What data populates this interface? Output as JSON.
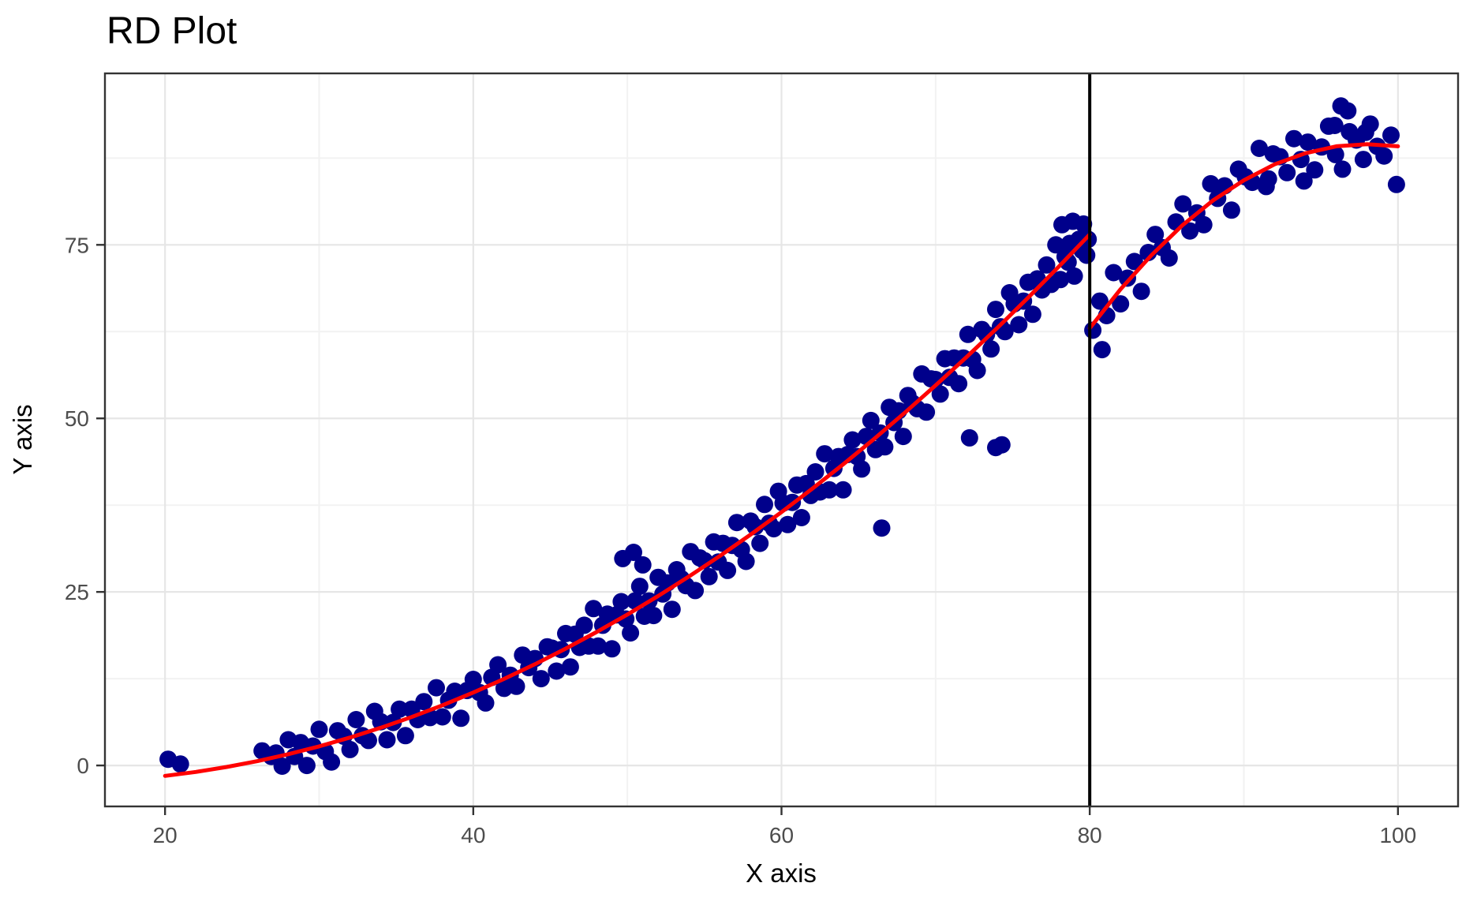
{
  "page": {
    "title": "RD Plot"
  },
  "chart_data": {
    "type": "scatter",
    "title": "RD Plot",
    "xlabel": "X axis",
    "ylabel": "Y axis",
    "xlim": [
      16.1,
      103.9
    ],
    "ylim": [
      -5.9,
      99.7
    ],
    "x_ticks": [
      20,
      40,
      60,
      80,
      100
    ],
    "x_tick_labels": [
      "20",
      "40",
      "60",
      "80",
      "100"
    ],
    "y_ticks": [
      0,
      25,
      50,
      75
    ],
    "y_tick_labels": [
      "0",
      "25",
      "50",
      "75"
    ],
    "x_minor_gridlines": [
      30,
      50,
      70,
      90
    ],
    "y_minor_gridlines": [
      12.5,
      37.5,
      62.5,
      87.5
    ],
    "grid": "on",
    "legend": "none",
    "cutoff_x": 80,
    "discontinuity": {
      "left_limit": 76.5,
      "right_limit": 63.0
    },
    "colors": {
      "points": "#00008B",
      "fit_line": "#FF0000",
      "cutoff_line": "#000000",
      "grid_major": "#E6E6E6",
      "grid_minor": "#F2F2F2",
      "panel_border": "#333333",
      "tick_text": "#4D4D4D",
      "text": "#000000"
    },
    "series": [
      {
        "name": "observations",
        "type": "scatter",
        "points": [
          [
            20.2,
            0.9
          ],
          [
            21.0,
            0.2
          ],
          [
            26.3,
            2.1
          ],
          [
            26.9,
            1.3
          ],
          [
            27.2,
            1.8
          ],
          [
            27.6,
            -0.1
          ],
          [
            28.0,
            3.7
          ],
          [
            28.4,
            1.3
          ],
          [
            28.8,
            3.3
          ],
          [
            29.2,
            0.0
          ],
          [
            29.6,
            2.8
          ],
          [
            30.0,
            5.2
          ],
          [
            30.4,
            2.0
          ],
          [
            30.8,
            0.5
          ],
          [
            31.2,
            5.0
          ],
          [
            31.6,
            4.2
          ],
          [
            32.0,
            2.3
          ],
          [
            32.4,
            6.6
          ],
          [
            32.8,
            4.3
          ],
          [
            33.2,
            3.6
          ],
          [
            33.6,
            7.8
          ],
          [
            34.0,
            6.3
          ],
          [
            34.4,
            3.7
          ],
          [
            34.8,
            6.2
          ],
          [
            35.2,
            8.1
          ],
          [
            35.6,
            4.3
          ],
          [
            36.0,
            8.1
          ],
          [
            36.4,
            6.6
          ],
          [
            36.8,
            9.2
          ],
          [
            37.2,
            6.9
          ],
          [
            37.6,
            11.2
          ],
          [
            38.0,
            7.0
          ],
          [
            38.4,
            9.4
          ],
          [
            38.8,
            10.7
          ],
          [
            39.2,
            6.8
          ],
          [
            39.6,
            10.8
          ],
          [
            40.0,
            12.4
          ],
          [
            40.4,
            10.5
          ],
          [
            40.8,
            9.0
          ],
          [
            41.2,
            12.7
          ],
          [
            41.6,
            14.5
          ],
          [
            42.0,
            11.1
          ],
          [
            42.4,
            13.0
          ],
          [
            42.8,
            11.4
          ],
          [
            43.2,
            15.9
          ],
          [
            43.6,
            14.1
          ],
          [
            44.0,
            15.4
          ],
          [
            44.4,
            12.5
          ],
          [
            44.8,
            17.1
          ],
          [
            45.1,
            16.9
          ],
          [
            45.4,
            13.6
          ],
          [
            45.7,
            16.7
          ],
          [
            46.0,
            19.0
          ],
          [
            46.3,
            14.2
          ],
          [
            46.6,
            18.9
          ],
          [
            46.9,
            17.0
          ],
          [
            47.2,
            20.2
          ],
          [
            47.5,
            17.2
          ],
          [
            47.8,
            22.6
          ],
          [
            48.1,
            17.2
          ],
          [
            48.4,
            20.2
          ],
          [
            48.7,
            21.8
          ],
          [
            49.0,
            16.8
          ],
          [
            49.3,
            21.7
          ],
          [
            49.6,
            23.6
          ],
          [
            49.9,
            21.1
          ],
          [
            50.2,
            19.1
          ],
          [
            50.5,
            23.7
          ],
          [
            50.8,
            25.8
          ],
          [
            51.1,
            21.5
          ],
          [
            51.4,
            23.7
          ],
          [
            51.7,
            21.6
          ],
          [
            52.0,
            27.1
          ],
          [
            52.3,
            24.7
          ],
          [
            52.6,
            26.3
          ],
          [
            52.9,
            22.5
          ],
          [
            53.2,
            28.2
          ],
          [
            53.5,
            26.9
          ],
          [
            53.8,
            25.9
          ],
          [
            54.1,
            30.8
          ],
          [
            54.4,
            25.2
          ],
          [
            54.7,
            29.9
          ],
          [
            55.0,
            29.5
          ],
          [
            55.3,
            27.2
          ],
          [
            55.6,
            32.2
          ],
          [
            55.9,
            29.3
          ],
          [
            56.2,
            32.0
          ],
          [
            56.5,
            28.1
          ],
          [
            56.8,
            31.7
          ],
          [
            57.1,
            35.0
          ],
          [
            57.4,
            31.1
          ],
          [
            57.7,
            29.4
          ],
          [
            58.0,
            35.2
          ],
          [
            58.3,
            34.4
          ],
          [
            58.6,
            32.0
          ],
          [
            58.9,
            37.6
          ],
          [
            59.2,
            34.9
          ],
          [
            59.5,
            34.1
          ],
          [
            59.8,
            39.5
          ],
          [
            60.1,
            37.8
          ],
          [
            60.4,
            34.7
          ],
          [
            60.7,
            37.9
          ],
          [
            61.0,
            40.4
          ],
          [
            61.3,
            35.7
          ],
          [
            61.6,
            40.6
          ],
          [
            61.9,
            38.9
          ],
          [
            62.2,
            42.3
          ],
          [
            62.5,
            39.4
          ],
          [
            62.8,
            44.9
          ],
          [
            63.1,
            39.7
          ],
          [
            63.4,
            42.8
          ],
          [
            63.7,
            44.5
          ],
          [
            64.0,
            39.7
          ],
          [
            64.3,
            44.8
          ],
          [
            64.6,
            46.9
          ],
          [
            64.9,
            44.5
          ],
          [
            65.2,
            42.7
          ],
          [
            65.5,
            47.4
          ],
          [
            65.8,
            49.7
          ],
          [
            66.1,
            45.5
          ],
          [
            66.4,
            47.9
          ],
          [
            66.7,
            45.9
          ],
          [
            67.0,
            51.6
          ],
          [
            67.3,
            49.4
          ],
          [
            67.6,
            51.1
          ],
          [
            67.9,
            47.4
          ],
          [
            68.2,
            53.3
          ],
          [
            68.5,
            52.2
          ],
          [
            68.8,
            51.4
          ],
          [
            69.1,
            56.4
          ],
          [
            69.4,
            50.9
          ],
          [
            69.7,
            55.7
          ],
          [
            70.0,
            55.6
          ],
          [
            70.3,
            53.5
          ],
          [
            70.6,
            58.6
          ],
          [
            70.9,
            55.9
          ],
          [
            71.2,
            58.7
          ],
          [
            71.5,
            55.0
          ],
          [
            71.8,
            58.7
          ],
          [
            72.1,
            62.1
          ],
          [
            72.4,
            58.5
          ],
          [
            72.7,
            56.9
          ],
          [
            73.0,
            62.8
          ],
          [
            73.3,
            62.1
          ],
          [
            73.6,
            60.0
          ],
          [
            73.9,
            65.7
          ],
          [
            74.2,
            63.2
          ],
          [
            74.5,
            62.5
          ],
          [
            74.8,
            68.1
          ],
          [
            75.1,
            66.5
          ],
          [
            75.4,
            63.5
          ],
          [
            75.7,
            66.9
          ],
          [
            76.0,
            69.6
          ],
          [
            76.3,
            65.0
          ],
          [
            76.6,
            70.1
          ],
          [
            76.9,
            68.5
          ],
          [
            77.2,
            72.1
          ],
          [
            77.5,
            69.3
          ],
          [
            77.8,
            75.0
          ],
          [
            78.1,
            70.0
          ],
          [
            78.4,
            73.3
          ],
          [
            78.7,
            75.2
          ],
          [
            79.0,
            70.5
          ],
          [
            79.3,
            75.8
          ],
          [
            79.6,
            78.0
          ],
          [
            79.9,
            75.8
          ],
          [
            49.7,
            29.8
          ],
          [
            50.4,
            30.7
          ],
          [
            51.0,
            28.9
          ],
          [
            66.5,
            34.2
          ],
          [
            74.3,
            46.2
          ],
          [
            72.2,
            47.2
          ],
          [
            73.9,
            45.8
          ],
          [
            78.2,
            77.9
          ],
          [
            78.9,
            78.4
          ],
          [
            79.5,
            74.2
          ],
          [
            78.6,
            72.5
          ],
          [
            79.8,
            73.5
          ],
          [
            80.2,
            62.7
          ],
          [
            80.65,
            66.9
          ],
          [
            81.1,
            64.8
          ],
          [
            81.55,
            71.0
          ],
          [
            82.0,
            66.5
          ],
          [
            82.45,
            70.2
          ],
          [
            82.9,
            72.6
          ],
          [
            83.35,
            68.3
          ],
          [
            83.8,
            73.9
          ],
          [
            84.25,
            76.5
          ],
          [
            84.7,
            74.6
          ],
          [
            85.15,
            73.1
          ],
          [
            85.6,
            78.3
          ],
          [
            86.05,
            80.9
          ],
          [
            86.5,
            77.0
          ],
          [
            86.95,
            79.6
          ],
          [
            87.4,
            77.9
          ],
          [
            87.85,
            83.8
          ],
          [
            88.3,
            81.7
          ],
          [
            88.75,
            83.5
          ],
          [
            89.2,
            80.0
          ],
          [
            89.65,
            85.9
          ],
          [
            90.1,
            84.8
          ],
          [
            90.55,
            84.0
          ],
          [
            91.0,
            88.9
          ],
          [
            91.45,
            83.4
          ],
          [
            91.9,
            88.1
          ],
          [
            92.35,
            87.7
          ],
          [
            92.8,
            85.4
          ],
          [
            93.25,
            90.3
          ],
          [
            93.7,
            87.3
          ],
          [
            94.15,
            89.8
          ],
          [
            94.6,
            85.8
          ],
          [
            95.05,
            89.1
          ],
          [
            95.5,
            92.1
          ],
          [
            95.95,
            88.0
          ],
          [
            96.4,
            85.9
          ],
          [
            96.85,
            91.3
          ],
          [
            97.3,
            90.1
          ],
          [
            97.75,
            87.3
          ],
          [
            98.2,
            92.4
          ],
          [
            98.65,
            89.2
          ],
          [
            99.1,
            87.8
          ],
          [
            99.55,
            90.8
          ],
          [
            99.9,
            83.7
          ],
          [
            80.8,
            59.9
          ],
          [
            96.3,
            95.0
          ],
          [
            96.75,
            94.3
          ],
          [
            95.9,
            92.2
          ],
          [
            97.9,
            91.2
          ],
          [
            93.9,
            84.2
          ],
          [
            91.6,
            84.5
          ]
        ]
      },
      {
        "name": "fit_left",
        "type": "line",
        "points": [
          [
            20,
            -1.5
          ],
          [
            22,
            -0.93
          ],
          [
            24,
            -0.22
          ],
          [
            26,
            0.63
          ],
          [
            28,
            1.62
          ],
          [
            30,
            2.75
          ],
          [
            32,
            4.02
          ],
          [
            34,
            5.43
          ],
          [
            36,
            6.98
          ],
          [
            38,
            8.67
          ],
          [
            40,
            10.5
          ],
          [
            42,
            12.47
          ],
          [
            44,
            14.58
          ],
          [
            46,
            16.83
          ],
          [
            48,
            19.22
          ],
          [
            50,
            21.75
          ],
          [
            52,
            24.42
          ],
          [
            54,
            27.23
          ],
          [
            56,
            30.18
          ],
          [
            58,
            33.27
          ],
          [
            60,
            36.5
          ],
          [
            62,
            39.87
          ],
          [
            64,
            43.38
          ],
          [
            66,
            47.03
          ],
          [
            68,
            50.82
          ],
          [
            70,
            54.75
          ],
          [
            72,
            58.82
          ],
          [
            74,
            63.03
          ],
          [
            76,
            67.38
          ],
          [
            78,
            71.87
          ],
          [
            80,
            76.5
          ]
        ]
      },
      {
        "name": "fit_right",
        "type": "line",
        "points": [
          [
            80,
            63.0
          ],
          [
            82,
            68.6
          ],
          [
            84,
            73.5
          ],
          [
            86,
            77.8
          ],
          [
            88,
            81.4
          ],
          [
            90,
            84.3
          ],
          [
            92,
            86.6
          ],
          [
            94,
            88.2
          ],
          [
            96,
            89.2
          ],
          [
            98,
            89.5
          ],
          [
            100,
            89.2
          ]
        ]
      }
    ]
  }
}
